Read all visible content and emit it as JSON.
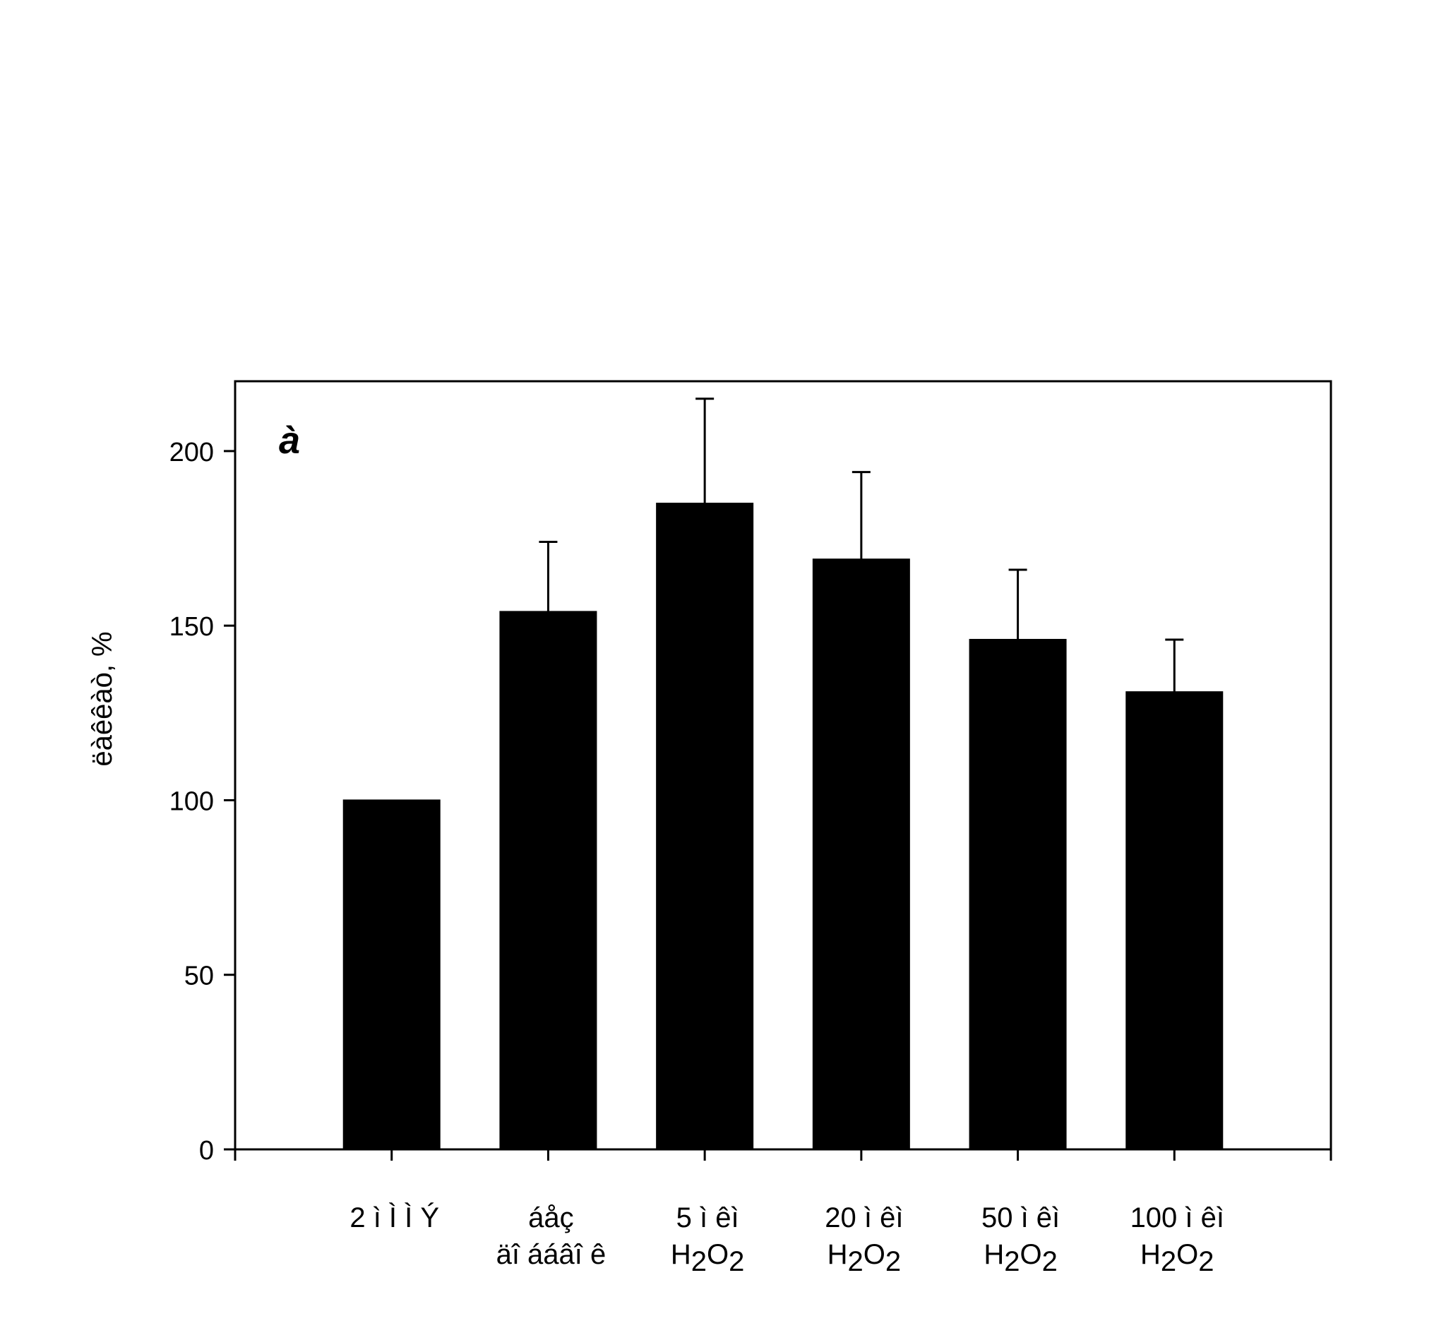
{
  "chart_data": {
    "type": "bar",
    "panel_label": "à",
    "ylabel": "ëàêêàò, %",
    "xlabel": "",
    "ylim": [
      0,
      220
    ],
    "yticks": [
      0,
      50,
      100,
      150,
      200
    ],
    "grid": false,
    "legend": "none",
    "categories": [
      {
        "lines": [
          "2 ì Ì  Ì Ý"
        ]
      },
      {
        "lines": [
          "áåç",
          "äî ááâî ê"
        ]
      },
      {
        "lines": [
          "5 ì êì",
          "H|2|O|2"
        ]
      },
      {
        "lines": [
          "20 ì êì",
          "H|2|O|2"
        ]
      },
      {
        "lines": [
          "50 ì êì",
          "H|2|O|2"
        ]
      },
      {
        "lines": [
          "100 ì êì",
          "H|2|O|2"
        ]
      }
    ],
    "values": [
      100,
      154,
      185,
      169,
      146,
      131
    ],
    "error_upper": [
      0,
      20,
      30,
      25,
      20,
      15
    ],
    "colors": {
      "bar": "#000000",
      "axis": "#000000",
      "background": "#ffffff"
    }
  }
}
